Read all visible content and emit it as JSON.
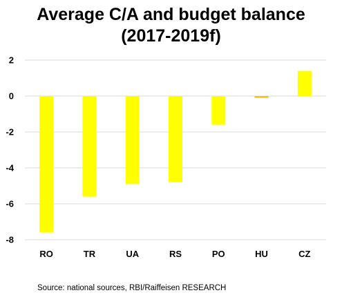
{
  "chart_data": {
    "type": "bar",
    "title_line1": "Average C/A and budget balance",
    "title_line2": "(2017-2019f)",
    "xlabel": "",
    "ylabel": "",
    "categories": [
      "RO",
      "TR",
      "UA",
      "RS",
      "PO",
      "HU",
      "CZ"
    ],
    "values": [
      -7.6,
      -5.6,
      -4.9,
      -4.8,
      -1.6,
      -0.1,
      1.4
    ],
    "ylim": [
      -8,
      2
    ],
    "yticks": [
      2,
      0,
      -2,
      -4,
      -6,
      -8
    ],
    "ytick_labels": [
      "2",
      "0",
      "-2",
      "-4",
      "-6",
      "-8"
    ],
    "grid": true,
    "legend": "none",
    "colors": {
      "bar": "#ffff00",
      "bar_near_zero": "#ffc000",
      "grid": "#d9d9d9"
    }
  },
  "source": "Source: national sources, RBI/Raiffeisen RESEARCH"
}
